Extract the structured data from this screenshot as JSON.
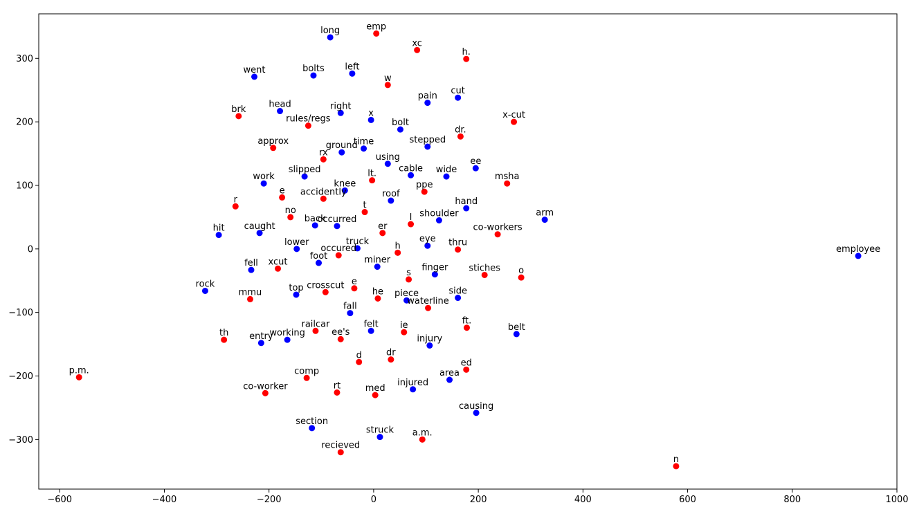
{
  "chart_data": {
    "type": "scatter",
    "title": "",
    "xlabel": "",
    "ylabel": "",
    "xlim": [
      -640,
      1000
    ],
    "ylim": [
      -378,
      370
    ],
    "xticks": [
      -600,
      -400,
      -200,
      0,
      200,
      400,
      600,
      800,
      1000
    ],
    "yticks": [
      -300,
      -200,
      -100,
      0,
      100,
      200,
      300
    ],
    "grid": false,
    "legend": "none",
    "colors": {
      "blue": "#0000ff",
      "red": "#ff0000"
    },
    "points": [
      {
        "label": "long",
        "x": -83,
        "y": 333,
        "color": "blue"
      },
      {
        "label": "emp",
        "x": 5,
        "y": 339,
        "color": "red"
      },
      {
        "label": "xc",
        "x": 83,
        "y": 313,
        "color": "red"
      },
      {
        "label": "h.",
        "x": 177,
        "y": 299,
        "color": "red"
      },
      {
        "label": "went",
        "x": -228,
        "y": 271,
        "color": "blue"
      },
      {
        "label": "bolts",
        "x": -115,
        "y": 273,
        "color": "blue"
      },
      {
        "label": "left",
        "x": -41,
        "y": 276,
        "color": "blue"
      },
      {
        "label": "w",
        "x": 27,
        "y": 258,
        "color": "red"
      },
      {
        "label": "pain",
        "x": 103,
        "y": 230,
        "color": "blue"
      },
      {
        "label": "cut",
        "x": 161,
        "y": 238,
        "color": "blue"
      },
      {
        "label": "head",
        "x": -179,
        "y": 217,
        "color": "blue"
      },
      {
        "label": "right",
        "x": -63,
        "y": 214,
        "color": "blue"
      },
      {
        "label": "x",
        "x": -5,
        "y": 203,
        "color": "blue"
      },
      {
        "label": "brk",
        "x": -258,
        "y": 209,
        "color": "red"
      },
      {
        "label": "rules/regs",
        "x": -125,
        "y": 194,
        "color": "red"
      },
      {
        "label": "bolt",
        "x": 51,
        "y": 188,
        "color": "blue"
      },
      {
        "label": "x-cut",
        "x": 268,
        "y": 200,
        "color": "red"
      },
      {
        "label": "dr.",
        "x": 166,
        "y": 177,
        "color": "red"
      },
      {
        "label": "approx",
        "x": -192,
        "y": 159,
        "color": "red"
      },
      {
        "label": "ground",
        "x": -61,
        "y": 152,
        "color": "blue"
      },
      {
        "label": "time",
        "x": -19,
        "y": 158,
        "color": "blue"
      },
      {
        "label": "stepped",
        "x": 103,
        "y": 161,
        "color": "blue"
      },
      {
        "label": "rx",
        "x": -96,
        "y": 141,
        "color": "red"
      },
      {
        "label": "using",
        "x": 27,
        "y": 134,
        "color": "blue"
      },
      {
        "label": "slipped",
        "x": -132,
        "y": 114,
        "color": "blue"
      },
      {
        "label": "cable",
        "x": 71,
        "y": 116,
        "color": "blue"
      },
      {
        "label": "wide",
        "x": 139,
        "y": 114,
        "color": "blue"
      },
      {
        "label": "ee",
        "x": 195,
        "y": 127,
        "color": "blue"
      },
      {
        "label": "lt.",
        "x": -3,
        "y": 108,
        "color": "red"
      },
      {
        "label": "work",
        "x": -210,
        "y": 103,
        "color": "blue"
      },
      {
        "label": "msha",
        "x": 255,
        "y": 103,
        "color": "red"
      },
      {
        "label": "knee",
        "x": -55,
        "y": 92,
        "color": "blue"
      },
      {
        "label": "ppe",
        "x": 97,
        "y": 90,
        "color": "red"
      },
      {
        "label": "e",
        "x": -175,
        "y": 81,
        "color": "red"
      },
      {
        "label": "accidently",
        "x": -96,
        "y": 79,
        "color": "red"
      },
      {
        "label": "roof",
        "x": 33,
        "y": 76,
        "color": "blue"
      },
      {
        "label": "r",
        "x": -264,
        "y": 67,
        "color": "red"
      },
      {
        "label": "hand",
        "x": 177,
        "y": 64,
        "color": "blue"
      },
      {
        "label": "t",
        "x": -17,
        "y": 58,
        "color": "red"
      },
      {
        "label": "no",
        "x": -159,
        "y": 50,
        "color": "red"
      },
      {
        "label": "shoulder",
        "x": 125,
        "y": 45,
        "color": "blue"
      },
      {
        "label": "arm",
        "x": 327,
        "y": 46,
        "color": "blue"
      },
      {
        "label": "back",
        "x": -112,
        "y": 37,
        "color": "blue"
      },
      {
        "label": "occurred",
        "x": -70,
        "y": 36,
        "color": "blue"
      },
      {
        "label": "l",
        "x": 71,
        "y": 39,
        "color": "red"
      },
      {
        "label": "er",
        "x": 17,
        "y": 25,
        "color": "red"
      },
      {
        "label": "co-workers",
        "x": 237,
        "y": 23,
        "color": "red"
      },
      {
        "label": "hit",
        "x": -296,
        "y": 22,
        "color": "blue"
      },
      {
        "label": "caught",
        "x": -218,
        "y": 25,
        "color": "blue"
      },
      {
        "label": "lower",
        "x": -147,
        "y": 0,
        "color": "blue"
      },
      {
        "label": "truck",
        "x": -31,
        "y": 1,
        "color": "blue"
      },
      {
        "label": "eye",
        "x": 103,
        "y": 5,
        "color": "blue"
      },
      {
        "label": "thru",
        "x": 161,
        "y": -1,
        "color": "red"
      },
      {
        "label": "employee",
        "x": 926,
        "y": -11,
        "color": "blue"
      },
      {
        "label": "occured",
        "x": -67,
        "y": -10,
        "color": "red"
      },
      {
        "label": "h",
        "x": 46,
        "y": -6,
        "color": "red"
      },
      {
        "label": "fell",
        "x": -234,
        "y": -33,
        "color": "blue"
      },
      {
        "label": "xcut",
        "x": -183,
        "y": -31,
        "color": "red"
      },
      {
        "label": "foot",
        "x": -105,
        "y": -22,
        "color": "blue"
      },
      {
        "label": "miner",
        "x": 7,
        "y": -28,
        "color": "blue"
      },
      {
        "label": "finger",
        "x": 117,
        "y": -40,
        "color": "blue"
      },
      {
        "label": "stiches",
        "x": 212,
        "y": -41,
        "color": "red"
      },
      {
        "label": "o",
        "x": 282,
        "y": -45,
        "color": "red"
      },
      {
        "label": "s",
        "x": 67,
        "y": -48,
        "color": "red"
      },
      {
        "label": "rock",
        "x": -322,
        "y": -66,
        "color": "blue"
      },
      {
        "label": "mmu",
        "x": -236,
        "y": -79,
        "color": "red"
      },
      {
        "label": "top",
        "x": -148,
        "y": -72,
        "color": "blue"
      },
      {
        "label": "crosscut",
        "x": -92,
        "y": -68,
        "color": "red"
      },
      {
        "label": "e",
        "x": -37,
        "y": -62,
        "color": "red"
      },
      {
        "label": "he",
        "x": 8,
        "y": -78,
        "color": "red"
      },
      {
        "label": "piece",
        "x": 63,
        "y": -81,
        "color": "blue"
      },
      {
        "label": "waterline",
        "x": 104,
        "y": -93,
        "color": "red"
      },
      {
        "label": "side",
        "x": 161,
        "y": -77,
        "color": "blue"
      },
      {
        "label": "fall",
        "x": -45,
        "y": -101,
        "color": "blue"
      },
      {
        "label": "felt",
        "x": -5,
        "y": -129,
        "color": "blue"
      },
      {
        "label": "ie",
        "x": 58,
        "y": -131,
        "color": "red"
      },
      {
        "label": "ft.",
        "x": 178,
        "y": -124,
        "color": "red"
      },
      {
        "label": "belt",
        "x": 273,
        "y": -134,
        "color": "blue"
      },
      {
        "label": "th",
        "x": -286,
        "y": -143,
        "color": "red"
      },
      {
        "label": "entry",
        "x": -215,
        "y": -148,
        "color": "blue"
      },
      {
        "label": "working",
        "x": -165,
        "y": -143,
        "color": "blue"
      },
      {
        "label": "railcar",
        "x": -111,
        "y": -129,
        "color": "red"
      },
      {
        "label": "ee's",
        "x": -63,
        "y": -142,
        "color": "red"
      },
      {
        "label": "injury",
        "x": 107,
        "y": -152,
        "color": "blue"
      },
      {
        "label": "d",
        "x": -28,
        "y": -178,
        "color": "red"
      },
      {
        "label": "dr",
        "x": 33,
        "y": -174,
        "color": "red"
      },
      {
        "label": "ed",
        "x": 177,
        "y": -190,
        "color": "red"
      },
      {
        "label": "p.m.",
        "x": -563,
        "y": -202,
        "color": "red"
      },
      {
        "label": "comp",
        "x": -128,
        "y": -203,
        "color": "red"
      },
      {
        "label": "area",
        "x": 145,
        "y": -206,
        "color": "blue"
      },
      {
        "label": "co-worker",
        "x": -207,
        "y": -227,
        "color": "red"
      },
      {
        "label": "rt",
        "x": -70,
        "y": -226,
        "color": "red"
      },
      {
        "label": "med",
        "x": 3,
        "y": -230,
        "color": "red"
      },
      {
        "label": "injured",
        "x": 75,
        "y": -221,
        "color": "blue"
      },
      {
        "label": "causing",
        "x": 196,
        "y": -258,
        "color": "blue"
      },
      {
        "label": "section",
        "x": -118,
        "y": -282,
        "color": "blue"
      },
      {
        "label": "struck",
        "x": 12,
        "y": -296,
        "color": "blue"
      },
      {
        "label": "a.m.",
        "x": 93,
        "y": -300,
        "color": "red"
      },
      {
        "label": "recieved",
        "x": -63,
        "y": -320,
        "color": "red"
      },
      {
        "label": "n",
        "x": 578,
        "y": -342,
        "color": "red"
      }
    ]
  }
}
